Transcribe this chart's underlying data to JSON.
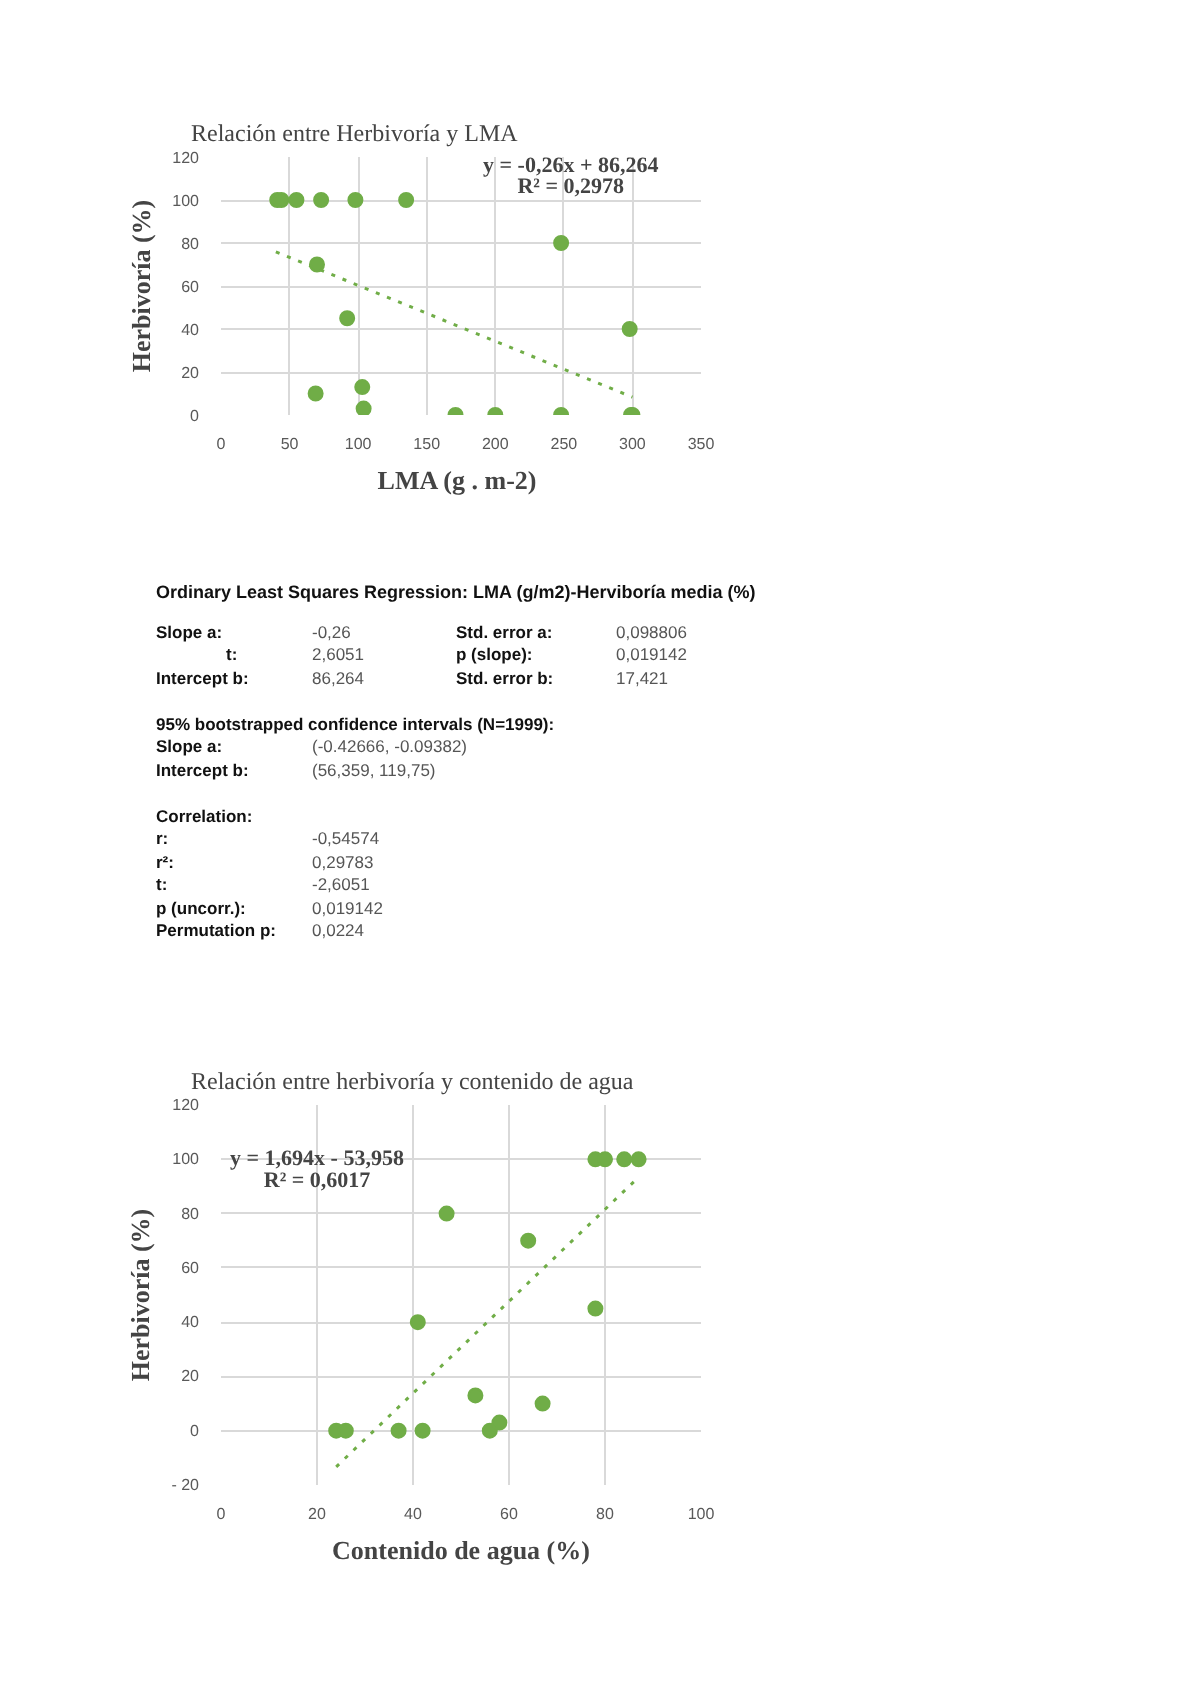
{
  "chart_data": [
    {
      "type": "scatter",
      "title": "Relación entre Herbivoría y LMA",
      "xlabel": "LMA  (g . m-2)",
      "ylabel": "Herbivoría (%)",
      "annotations": [
        "y = -0,26x + 86,264",
        "R² = 0,2978"
      ],
      "xlim": [
        0,
        350
      ],
      "xticks": [
        0,
        50,
        100,
        150,
        200,
        250,
        300,
        350
      ],
      "ylim": [
        0,
        120
      ],
      "yticks": [
        0,
        20,
        40,
        60,
        80,
        100,
        120
      ],
      "grid": true,
      "series": [
        {
          "type": "scatter",
          "marker": "circle",
          "color": "#70ad47",
          "x": [
            41,
            44,
            55,
            73,
            98,
            135,
            70,
            92,
            69,
            103,
            104,
            171,
            200,
            248,
            248,
            298,
            299,
            300
          ],
          "values": [
            100,
            100,
            100,
            100,
            100,
            100,
            70,
            45,
            10,
            13,
            3,
            0,
            0,
            0,
            80,
            40,
            0,
            0
          ]
        },
        {
          "type": "line",
          "line_style": "dotted",
          "color": "#70ad47",
          "x": [
            40,
            300
          ],
          "values": [
            75.9,
            8.3
          ]
        }
      ]
    },
    {
      "type": "other",
      "title": "Ordinary Least Squares Regression: LMA (g/m2)-Herviboría media (%)",
      "annotations": [
        "Slope a:",
        "-0,26",
        "Std. error a:",
        "0,098806",
        "t:",
        "2,6051",
        "p (slope):",
        "0,019142",
        "Intercept b:",
        "86,264",
        "Std. error b:",
        "17,421",
        "95% bootstrapped confidence intervals (N=1999):",
        "Slope a:",
        "(-0.42666, -0.09382)",
        "Intercept b:",
        "(56,359, 119,75)",
        "Correlation:",
        "r:",
        "-0,54574",
        "r²:",
        "0,29783",
        "t:",
        "-2,6051",
        "p (uncorr.):",
        "0,019142",
        "Permutation p:",
        "0,0224"
      ]
    },
    {
      "type": "scatter",
      "title": "Relación entre herbivoría y contenido de agua",
      "xlabel": "Contenido de agua (%)",
      "ylabel": "Herbivoría (%)",
      "annotations": [
        "y = 1,694x - 53,958",
        "R² = 0,6017"
      ],
      "xlim": [
        0,
        100
      ],
      "xticks": [
        0,
        20,
        40,
        60,
        80,
        100
      ],
      "ylim": [
        -20,
        120
      ],
      "yticks": [
        {
          "value": -20,
          "label": "- 20"
        },
        0,
        20,
        40,
        60,
        80,
        100,
        120
      ],
      "grid": true,
      "series": [
        {
          "type": "scatter",
          "marker": "circle",
          "color": "#70ad47",
          "x": [
            24,
            26,
            37,
            42,
            41,
            47,
            53,
            56,
            58,
            64,
            67,
            78,
            78,
            80,
            84,
            87
          ],
          "values": [
            0,
            0,
            0,
            0,
            40,
            80,
            13,
            0,
            3,
            70,
            10,
            45,
            100,
            100,
            100,
            100
          ]
        },
        {
          "type": "line",
          "line_style": "dotted",
          "color": "#70ad47",
          "x": [
            24,
            87
          ],
          "values": [
            -13.3,
            93.4
          ]
        }
      ]
    }
  ]
}
